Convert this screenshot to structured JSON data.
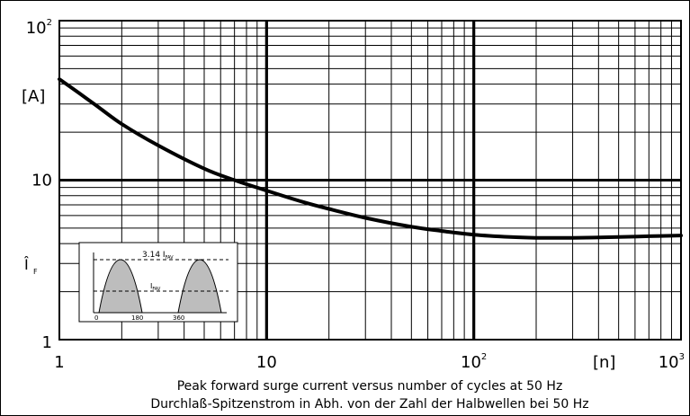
{
  "chart_data": {
    "type": "line",
    "x_scale": "log",
    "y_scale": "log",
    "xlim": [
      1,
      1000
    ],
    "ylim": [
      1,
      100
    ],
    "grid": true,
    "x_ticks": [
      {
        "value": 1,
        "base": "1",
        "exp": ""
      },
      {
        "value": 10,
        "base": "10",
        "exp": ""
      },
      {
        "value": 100,
        "base": "10",
        "exp": "2"
      },
      {
        "value": 1000,
        "base": "10",
        "exp": "3"
      }
    ],
    "y_ticks": [
      {
        "value": 1,
        "base": "1",
        "exp": ""
      },
      {
        "value": 10,
        "base": "10",
        "exp": ""
      },
      {
        "value": 100,
        "base": "10",
        "exp": "2"
      }
    ],
    "xunit": "[n]",
    "yunit": "[A]",
    "ylabel_main": "Î",
    "ylabel_sub": "F",
    "caption_en": "Peak forward surge current versus number of cycles at 50 Hz",
    "caption_de": "Durchlaß-Spitzenstrom in Abh. von der Zahl der Halbwellen bei 50 Hz",
    "series": [
      {
        "x": [
          1,
          1.25,
          1.5,
          2,
          3,
          5,
          7,
          10,
          15,
          20,
          30,
          50,
          70,
          100,
          150,
          200,
          300,
          500,
          700,
          1000
        ],
        "y": [
          43,
          35,
          29.5,
          22.5,
          16.5,
          11.8,
          10,
          8.6,
          7.3,
          6.6,
          5.8,
          5.1,
          4.8,
          4.55,
          4.4,
          4.35,
          4.35,
          4.4,
          4.45,
          4.5
        ]
      }
    ],
    "inset": {
      "label_top_value": "3.14 I",
      "label_top_sub": "FAV",
      "label_mid_value": "I",
      "label_mid_sub": "FAV",
      "tick_labels": [
        "0",
        "180",
        "360"
      ]
    }
  }
}
